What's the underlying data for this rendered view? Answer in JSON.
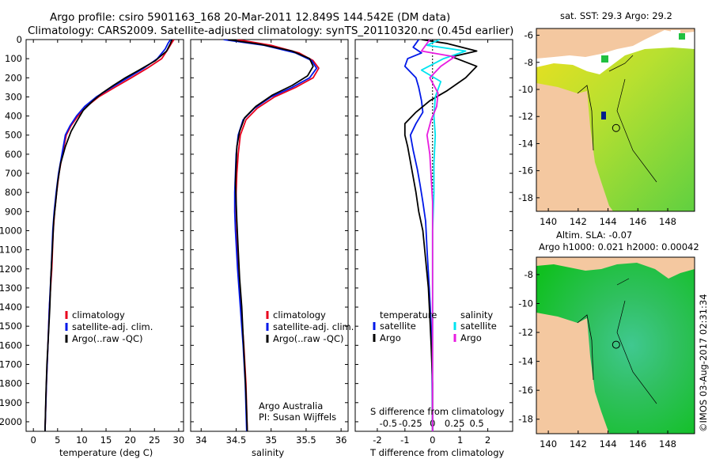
{
  "title": {
    "line1": "Argo profile: csiro 5901163_168 20-Mar-2011 12.849S 144.542E (DM data)",
    "line2": "Climatology: CARS2009. Satellite-adjusted climatology: synTS_20110320.nc (0.45d earlier)"
  },
  "colors": {
    "climatology": "#e8001c",
    "satellite": "#0018e8",
    "argo": "#000000",
    "sal_satellite": "#00e4f0",
    "sal_argo": "#e81ce0",
    "land": "#f4c8a0",
    "bg_missing": "#ffffff"
  },
  "depth_axis": {
    "ticks": [
      0,
      100,
      200,
      300,
      400,
      500,
      600,
      700,
      800,
      900,
      1000,
      1100,
      1200,
      1300,
      1400,
      1500,
      1600,
      1700,
      1800,
      1900,
      2000
    ],
    "range": [
      0,
      2050
    ]
  },
  "chart_data": [
    {
      "type": "line",
      "name": "temperature-profile",
      "xlabel": "temperature (deg C)",
      "xlim": [
        -1.5,
        31
      ],
      "xticks": [
        0,
        5,
        10,
        15,
        20,
        25,
        30
      ],
      "legend": {
        "placement": "bottom-left",
        "items": [
          "climatology",
          "satellite-adj. clim.",
          "Argo(..raw -QC)"
        ]
      },
      "series": [
        {
          "name": "climatology",
          "color": "#e8001c",
          "points": [
            [
              29.0,
              0
            ],
            [
              28.5,
              20
            ],
            [
              27.8,
              50
            ],
            [
              26.5,
              100
            ],
            [
              23.5,
              150
            ],
            [
              20.2,
              200
            ],
            [
              16.8,
              250
            ],
            [
              13.5,
              300
            ],
            [
              11.0,
              350
            ],
            [
              9.2,
              400
            ],
            [
              7.8,
              450
            ],
            [
              6.8,
              500
            ],
            [
              6.0,
              600
            ],
            [
              5.3,
              700
            ],
            [
              4.8,
              800
            ],
            [
              4.4,
              900
            ],
            [
              4.1,
              1000
            ],
            [
              3.8,
              1200
            ],
            [
              3.3,
              1400
            ],
            [
              3.0,
              1600
            ],
            [
              2.7,
              1800
            ],
            [
              2.4,
              2050
            ]
          ]
        },
        {
          "name": "satellite-adj. clim.",
          "color": "#0018e8",
          "points": [
            [
              28.3,
              0
            ],
            [
              27.8,
              20
            ],
            [
              27.2,
              50
            ],
            [
              25.6,
              100
            ],
            [
              22.8,
              150
            ],
            [
              19.5,
              200
            ],
            [
              16.2,
              250
            ],
            [
              13.0,
              300
            ],
            [
              10.6,
              350
            ],
            [
              8.9,
              400
            ],
            [
              7.6,
              450
            ],
            [
              6.6,
              500
            ],
            [
              5.9,
              600
            ],
            [
              5.2,
              700
            ],
            [
              4.7,
              800
            ],
            [
              4.3,
              900
            ],
            [
              4.0,
              1000
            ],
            [
              3.7,
              1200
            ],
            [
              3.3,
              1400
            ],
            [
              3.0,
              1600
            ],
            [
              2.7,
              1800
            ],
            [
              2.4,
              2050
            ]
          ]
        },
        {
          "name": "Argo(..raw -QC)",
          "color": "#000000",
          "points": [
            [
              28.6,
              0
            ],
            [
              28.3,
              20
            ],
            [
              27.5,
              60
            ],
            [
              25.2,
              110
            ],
            [
              21.8,
              160
            ],
            [
              19.0,
              200
            ],
            [
              16.5,
              240
            ],
            [
              14.2,
              280
            ],
            [
              12.3,
              320
            ],
            [
              10.3,
              370
            ],
            [
              8.9,
              430
            ],
            [
              7.8,
              480
            ],
            [
              6.6,
              560
            ],
            [
              5.6,
              650
            ],
            [
              5.0,
              750
            ],
            [
              4.6,
              850
            ],
            [
              4.2,
              950
            ],
            [
              3.9,
              1100
            ],
            [
              3.6,
              1250
            ],
            [
              3.4,
              1400
            ],
            [
              3.1,
              1550
            ],
            [
              2.8,
              1700
            ],
            [
              2.6,
              1850
            ],
            [
              2.4,
              2050
            ]
          ]
        }
      ]
    },
    {
      "type": "line",
      "name": "salinity-profile",
      "xlabel": "salinity",
      "xlim": [
        33.85,
        36.1
      ],
      "xticks": [
        34,
        34.5,
        35,
        35.5,
        36
      ],
      "legend": {
        "placement": "bottom-right",
        "items": [
          "climatology",
          "satellite-adj. clim.",
          "Argo(..raw -QC)"
        ]
      },
      "annotation": [
        "Argo Australia",
        "PI: Susan Wijffels"
      ],
      "series": [
        {
          "name": "climatology",
          "color": "#e8001c",
          "points": [
            [
              34.52,
              0
            ],
            [
              35.0,
              30
            ],
            [
              35.4,
              70
            ],
            [
              35.6,
              110
            ],
            [
              35.68,
              150
            ],
            [
              35.6,
              200
            ],
            [
              35.35,
              250
            ],
            [
              35.05,
              300
            ],
            [
              34.8,
              360
            ],
            [
              34.64,
              420
            ],
            [
              34.56,
              500
            ],
            [
              34.53,
              600
            ],
            [
              34.51,
              700
            ],
            [
              34.5,
              800
            ],
            [
              34.5,
              900
            ],
            [
              34.51,
              1000
            ],
            [
              34.53,
              1200
            ],
            [
              34.57,
              1400
            ],
            [
              34.61,
              1600
            ],
            [
              34.64,
              1800
            ],
            [
              34.66,
              2050
            ]
          ]
        },
        {
          "name": "satellite-adj. clim.",
          "color": "#0018e8",
          "points": [
            [
              34.32,
              0
            ],
            [
              34.9,
              30
            ],
            [
              35.35,
              70
            ],
            [
              35.58,
              110
            ],
            [
              35.65,
              150
            ],
            [
              35.55,
              200
            ],
            [
              35.3,
              250
            ],
            [
              35.0,
              300
            ],
            [
              34.76,
              360
            ],
            [
              34.6,
              420
            ],
            [
              34.53,
              500
            ],
            [
              34.5,
              600
            ],
            [
              34.49,
              700
            ],
            [
              34.48,
              800
            ],
            [
              34.48,
              900
            ],
            [
              34.49,
              1000
            ],
            [
              34.52,
              1200
            ],
            [
              34.56,
              1400
            ],
            [
              34.6,
              1600
            ],
            [
              34.63,
              1800
            ],
            [
              34.65,
              2050
            ]
          ]
        },
        {
          "name": "Argo(..raw -QC)",
          "color": "#000000",
          "points": [
            [
              34.38,
              0
            ],
            [
              34.85,
              25
            ],
            [
              35.3,
              60
            ],
            [
              35.55,
              100
            ],
            [
              35.6,
              140
            ],
            [
              35.52,
              190
            ],
            [
              35.3,
              240
            ],
            [
              35.02,
              290
            ],
            [
              34.78,
              350
            ],
            [
              34.62,
              410
            ],
            [
              34.55,
              480
            ],
            [
              34.51,
              560
            ],
            [
              34.5,
              650
            ],
            [
              34.49,
              750
            ],
            [
              34.5,
              850
            ],
            [
              34.51,
              950
            ],
            [
              34.53,
              1100
            ],
            [
              34.55,
              1250
            ],
            [
              34.58,
              1400
            ],
            [
              34.6,
              1550
            ],
            [
              34.62,
              1700
            ],
            [
              34.64,
              1850
            ],
            [
              34.66,
              2050
            ]
          ]
        }
      ]
    },
    {
      "type": "line",
      "name": "difference-profile",
      "xlabel": "T difference from climatology",
      "xlabel2": "S difference from climatology",
      "xlim": [
        -2.8,
        2.9
      ],
      "xticks": [
        -2,
        -1,
        0,
        1,
        2
      ],
      "xticks_top_labels": [
        "-0.5",
        "-0.25",
        "0",
        "0.25",
        "0.5"
      ],
      "legend": {
        "placement": "bottom",
        "headers": [
          "temperature",
          "salinity"
        ],
        "items": [
          "satellite",
          "Argo",
          "satellite",
          "Argo"
        ]
      },
      "series": [
        {
          "name": "temperature satellite",
          "color": "#0018e8",
          "points": [
            [
              -0.5,
              0
            ],
            [
              -0.7,
              40
            ],
            [
              -0.4,
              70
            ],
            [
              -0.9,
              100
            ],
            [
              -1.0,
              140
            ],
            [
              -0.6,
              200
            ],
            [
              -0.5,
              250
            ],
            [
              -0.4,
              320
            ],
            [
              -0.35,
              380
            ],
            [
              -0.6,
              440
            ],
            [
              -0.8,
              500
            ],
            [
              -0.7,
              580
            ],
            [
              -0.55,
              680
            ],
            [
              -0.45,
              760
            ],
            [
              -0.35,
              850
            ],
            [
              -0.25,
              950
            ],
            [
              -0.2,
              1100
            ],
            [
              -0.12,
              1300
            ],
            [
              -0.05,
              1500
            ],
            [
              -0.02,
              1700
            ],
            [
              0.0,
              2050
            ]
          ]
        },
        {
          "name": "temperature Argo",
          "color": "#000000",
          "points": [
            [
              -0.4,
              0
            ],
            [
              0.5,
              20
            ],
            [
              1.6,
              60
            ],
            [
              0.7,
              90
            ],
            [
              1.6,
              140
            ],
            [
              1.2,
              200
            ],
            [
              0.5,
              270
            ],
            [
              -0.1,
              320
            ],
            [
              -0.6,
              380
            ],
            [
              -1.0,
              440
            ],
            [
              -1.0,
              500
            ],
            [
              -0.9,
              560
            ],
            [
              -0.8,
              640
            ],
            [
              -0.7,
              720
            ],
            [
              -0.6,
              800
            ],
            [
              -0.5,
              900
            ],
            [
              -0.35,
              1000
            ],
            [
              -0.25,
              1150
            ],
            [
              -0.15,
              1300
            ],
            [
              -0.1,
              1450
            ],
            [
              -0.05,
              1600
            ],
            [
              0.0,
              1800
            ],
            [
              0.0,
              2050
            ]
          ]
        },
        {
          "name": "salinity satellite",
          "color": "#00e4f0",
          "points": [
            [
              0.25,
              0
            ],
            [
              -0.2,
              30
            ],
            [
              1.2,
              60
            ],
            [
              0.4,
              100
            ],
            [
              -0.4,
              160
            ],
            [
              0.3,
              220
            ],
            [
              0.1,
              300
            ],
            [
              0.05,
              400
            ],
            [
              0.1,
              500
            ],
            [
              0.05,
              650
            ],
            [
              0.05,
              800
            ],
            [
              0.0,
              1000
            ],
            [
              0.0,
              1300
            ],
            [
              0.0,
              1600
            ],
            [
              0.0,
              2050
            ]
          ]
        },
        {
          "name": "salinity Argo",
          "color": "#e81ce0",
          "points": [
            [
              -0.1,
              0
            ],
            [
              -0.4,
              60
            ],
            [
              0.8,
              90
            ],
            [
              0.3,
              140
            ],
            [
              -0.1,
              200
            ],
            [
              0.2,
              280
            ],
            [
              0.15,
              350
            ],
            [
              -0.05,
              420
            ],
            [
              -0.2,
              500
            ],
            [
              -0.1,
              600
            ],
            [
              -0.05,
              720
            ],
            [
              0.0,
              850
            ],
            [
              0.0,
              1000
            ],
            [
              0.0,
              1300
            ],
            [
              0.0,
              1600
            ],
            [
              0.0,
              2050
            ]
          ]
        }
      ]
    }
  ],
  "maps": [
    {
      "name": "sst-map",
      "title": "sat. SST: 29.3  Argo: 29.2",
      "xticks": [
        140,
        142,
        144,
        146,
        148
      ],
      "yticks": [
        -6,
        -8,
        -10,
        -12,
        -14,
        -16,
        -18
      ],
      "argo_position": {
        "lon": 144.542,
        "lat": -12.849
      }
    },
    {
      "name": "sla-map",
      "title1": "Altim. SLA: -0.07",
      "title2": "Argo h1000: 0.021  h2000: 0.00042",
      "xticks": [
        140,
        142,
        144,
        146,
        148
      ],
      "yticks": [
        -8,
        -10,
        -12,
        -14,
        -16,
        -18
      ],
      "argo_position": {
        "lon": 144.542,
        "lat": -12.849
      }
    }
  ],
  "stamp": "©IMOS 03-Aug-2017 02:31:34"
}
